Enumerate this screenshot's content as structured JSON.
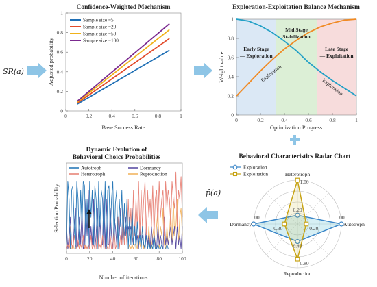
{
  "inputs": {
    "left_symbol": "SR(a)",
    "right_symbol": "p̂(a)"
  },
  "colors": {
    "blue": "#1f6fb5",
    "red": "#e24a2a",
    "yellow": "#f0b21a",
    "purple": "#7b2a8f",
    "teal": "#23a0c6",
    "orange": "#f08a24",
    "arrow": "#8ec5e6",
    "gold": "#c7a314"
  },
  "chart_data": [
    {
      "type": "line",
      "title": "Confidence-Weighted Mechanism",
      "xlabel": "Base Success Rate",
      "ylabel": "Adjusted probability",
      "xlim": [
        0,
        1
      ],
      "ylim": [
        0,
        1
      ],
      "xticks": [
        "0",
        "0.2",
        "0.4",
        "0.6",
        "0.8",
        "1"
      ],
      "yticks": [
        "0",
        "0.2",
        "0.4",
        "0.6",
        "0.8",
        "1"
      ],
      "legend_position": "top-left",
      "series": [
        {
          "name": "Sample size =5",
          "color": "#1f6fb5",
          "x": [
            0.1,
            0.9
          ],
          "y": [
            0.07,
            0.62
          ]
        },
        {
          "name": "Sample size =20",
          "color": "#e24a2a",
          "x": [
            0.1,
            0.9
          ],
          "y": [
            0.08,
            0.74
          ]
        },
        {
          "name": "Sample size =50",
          "color": "#f0b21a",
          "x": [
            0.1,
            0.9
          ],
          "y": [
            0.09,
            0.83
          ]
        },
        {
          "name": "Sample size =100",
          "color": "#7b2a8f",
          "x": [
            0.1,
            0.9
          ],
          "y": [
            0.1,
            0.89
          ]
        }
      ]
    },
    {
      "type": "line",
      "title": "Exploration-Exploitation Balance Mechanism",
      "xlabel": "Optimization Progress",
      "ylabel": "Weight value",
      "xlim": [
        0,
        1
      ],
      "ylim": [
        0,
        1
      ],
      "xticks": [
        "0",
        "0.2",
        "0.4",
        "0.6",
        "0.8",
        "1"
      ],
      "yticks": [
        "0",
        "0.2",
        "0.4",
        "0.6",
        "0.8",
        "1"
      ],
      "stages": [
        {
          "label_line1": "Early Stage",
          "label_line2": "— Exploration",
          "from": 0,
          "to": 0.33,
          "color": "#dbe8f5"
        },
        {
          "label_line1": "Mid Stage",
          "label_line2": "Stabilization",
          "from": 0.33,
          "to": 0.67,
          "color": "#dcefd6"
        },
        {
          "label_line1": "Late Stage",
          "label_line2": "— Exploitation",
          "from": 0.67,
          "to": 1,
          "color": "#f7dcdc"
        }
      ],
      "curve_labels": [
        {
          "text": "Exploration"
        },
        {
          "text": "Exploration"
        }
      ],
      "series": [
        {
          "color": "#23a0c6",
          "x": [
            0,
            0.1,
            0.2,
            0.3,
            0.4,
            0.5,
            0.6,
            0.7,
            0.8,
            0.9,
            1
          ],
          "y": [
            1.0,
            0.98,
            0.93,
            0.86,
            0.77,
            0.67,
            0.55,
            0.45,
            0.36,
            0.28,
            0.2
          ]
        },
        {
          "color": "#f08a24",
          "x": [
            0,
            0.1,
            0.2,
            0.3,
            0.4,
            0.5,
            0.6,
            0.7,
            0.8,
            0.9,
            1
          ],
          "y": [
            0.2,
            0.33,
            0.46,
            0.58,
            0.69,
            0.78,
            0.86,
            0.92,
            0.96,
            0.99,
            1.0
          ]
        }
      ]
    },
    {
      "type": "radar",
      "title": "Behavioral Characteristics Radar Chart",
      "axes": [
        "Heterotroph",
        "Autotroph",
        "Reproduction",
        "Dormancy"
      ],
      "series": [
        {
          "name": "Exploration",
          "color": "#3a86c8",
          "values": [
            0.2,
            1.0,
            0.4,
            1.0
          ],
          "labels": [
            "0.20",
            "1.00",
            "0.40",
            "1.00"
          ]
        },
        {
          "name": "Exploitation",
          "color": "#c7a314",
          "values": [
            1.0,
            0.2,
            0.8,
            0.3
          ],
          "labels": [
            "1.00",
            "0.20",
            "0.80",
            "0.30"
          ]
        }
      ]
    },
    {
      "type": "line",
      "title_line1": "Dynamic Evolution of",
      "title_line2": "Behavioral Choice Probabilities",
      "xlabel": "Number of iterations",
      "ylabel": "Selection Probability",
      "xlim": [
        0,
        100
      ],
      "ylim": [
        0,
        1
      ],
      "xticks": [
        "0",
        "20",
        "40",
        "60",
        "80",
        "100"
      ],
      "legend_position": "top",
      "series": [
        {
          "name": "Autotroph",
          "color": "#2a79b8",
          "y": [
            0.1,
            0.8,
            0.6,
            0.05,
            0.7,
            0.75,
            0.3,
            0.05,
            0.8,
            0.6,
            0.1,
            0.7,
            0.3,
            0.8,
            0.75,
            0.1,
            0.6,
            0.05,
            0.8,
            0.4,
            0.7,
            0.1,
            0.75,
            0.6,
            0.05,
            0.8,
            0.3,
            0.7,
            0.6,
            0.1,
            0.8,
            0.05,
            0.7,
            0.75,
            0.2,
            0.6,
            0.8,
            0.1,
            0.55,
            0.7,
            0.05,
            0.6,
            0.3,
            0.7,
            0.1,
            0.55,
            0.2,
            0.6,
            0.05,
            0.4,
            0.1,
            0.5,
            0.1,
            0.3,
            0.05,
            0.35,
            0.1,
            0.2,
            0.05,
            0.3,
            0.1,
            0.05,
            0.2,
            0.05,
            0.15,
            0.05,
            0.1,
            0.05,
            0.2,
            0.05,
            0.05,
            0.1,
            0.05,
            0.05,
            0.1,
            0.05,
            0.05,
            0.05,
            0.1,
            0.05,
            0.05,
            0.05,
            0.05,
            0.05,
            0.05,
            0.05,
            0.05,
            0.05,
            0.05,
            0.05,
            0.05
          ]
        },
        {
          "name": "Heterotroph",
          "color": "#e8857a",
          "y": [
            0.05,
            0.1,
            0.05,
            0.3,
            0.1,
            0.05,
            0.2,
            0.1,
            0.05,
            0.15,
            0.05,
            0.1,
            0.05,
            0.2,
            0.05,
            0.1,
            0.05,
            0.1,
            0.05,
            0.2,
            0.05,
            0.1,
            0.05,
            0.05,
            0.3,
            0.05,
            0.1,
            0.05,
            0.2,
            0.05,
            0.05,
            0.1,
            0.05,
            0.05,
            0.2,
            0.05,
            0.05,
            0.3,
            0.05,
            0.1,
            0.4,
            0.05,
            0.2,
            0.1,
            0.5,
            0.1,
            0.3,
            0.1,
            0.6,
            0.2,
            0.5,
            0.1,
            0.7,
            0.2,
            0.6,
            0.3,
            0.8,
            0.2,
            0.7,
            0.3,
            0.6,
            0.8,
            0.2,
            0.7,
            0.4,
            0.6,
            0.3,
            0.75,
            0.2,
            0.6,
            0.7,
            0.3,
            0.8,
            0.4,
            0.6,
            0.7,
            0.2,
            0.8,
            0.5,
            0.7,
            0.6,
            0.3,
            0.8,
            0.6,
            0.5,
            0.9,
            0.3,
            0.7,
            0.6,
            0.85,
            0.4
          ]
        },
        {
          "name": "Dormancy",
          "color": "#5b4fa3",
          "y": [
            0.3,
            0.05,
            0.2,
            0.4,
            0.1,
            0.05,
            0.3,
            0.5,
            0.05,
            0.1,
            0.4,
            0.1,
            0.5,
            0.05,
            0.1,
            0.6,
            0.2,
            0.7,
            0.05,
            0.3,
            0.1,
            0.6,
            0.05,
            0.2,
            0.5,
            0.05,
            0.4,
            0.1,
            0.1,
            0.7,
            0.05,
            0.6,
            0.1,
            0.1,
            0.5,
            0.2,
            0.05,
            0.4,
            0.3,
            0.1,
            0.4,
            0.2,
            0.5,
            0.1,
            0.3,
            0.2,
            0.4,
            0.2,
            0.3,
            0.2,
            0.3,
            0.2,
            0.1,
            0.3,
            0.1,
            0.2,
            0.05,
            0.3,
            0.1,
            0.2,
            0.1,
            0.05,
            0.3,
            0.1,
            0.2,
            0.05,
            0.3,
            0.1,
            0.2,
            0.1,
            0.05,
            0.3,
            0.1,
            0.2,
            0.1,
            0.05,
            0.4,
            0.1,
            0.2,
            0.1,
            0.2,
            0.3,
            0.1,
            0.2,
            0.3,
            0.05,
            0.3,
            0.1,
            0.2,
            0.05,
            0.3
          ]
        },
        {
          "name": "Reproduction",
          "color": "#f2b562",
          "y": [
            0.05,
            0.05,
            0.1,
            0.05,
            0.05,
            0.1,
            0.05,
            0.05,
            0.05,
            0.1,
            0.05,
            0.05,
            0.05,
            0.05,
            0.1,
            0.05,
            0.05,
            0.05,
            0.05,
            0.05,
            0.05,
            0.05,
            0.05,
            0.05,
            0.05,
            0.05,
            0.05,
            0.05,
            0.05,
            0.05,
            0.05,
            0.05,
            0.05,
            0.05,
            0.05,
            0.05,
            0.05,
            0.05,
            0.05,
            0.05,
            0.05,
            0.05,
            0.05,
            0.05,
            0.05,
            0.05,
            0.05,
            0.05,
            0.05,
            0.1,
            0.05,
            0.1,
            0.05,
            0.1,
            0.1,
            0.05,
            0.2,
            0.1,
            0.05,
            0.3,
            0.05,
            0.1,
            0.2,
            0.05,
            0.3,
            0.1,
            0.05,
            0.2,
            0.3,
            0.05,
            0.3,
            0.5,
            0.05,
            0.3,
            0.2,
            0.5,
            0.1,
            0.05,
            0.3,
            0.1,
            0.2,
            0.5,
            0.1,
            0.6,
            0.2,
            0.3,
            0.6,
            0.1,
            0.4,
            0.5,
            0.2
          ]
        }
      ]
    }
  ]
}
